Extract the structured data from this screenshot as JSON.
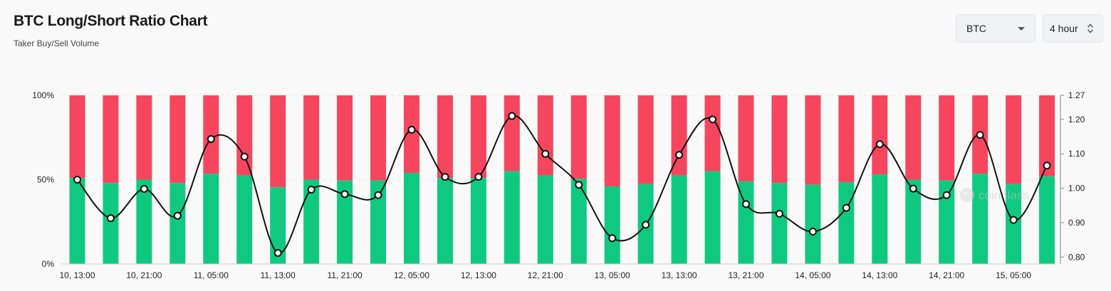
{
  "header": {
    "title": "BTC Long/Short Ratio Chart",
    "subtitle": "Taker Buy/Sell Volume"
  },
  "controls": {
    "coin_value": "BTC",
    "interval_value": "4 hour"
  },
  "watermark": {
    "text": "coinglass"
  },
  "colors": {
    "long": "#10c980",
    "short": "#f6465d",
    "ratio_line": "#111111",
    "grid": "#e8e8e8"
  },
  "chart_data": {
    "type": "bar",
    "stacked": true,
    "categories": [
      "10, 13:00",
      "10, 17:00",
      "10, 21:00",
      "11, 01:00",
      "11, 05:00",
      "11, 09:00",
      "11, 13:00",
      "11, 17:00",
      "11, 21:00",
      "12, 01:00",
      "12, 05:00",
      "12, 09:00",
      "12, 13:00",
      "12, 17:00",
      "12, 21:00",
      "13, 01:00",
      "13, 05:00",
      "13, 09:00",
      "13, 13:00",
      "13, 17:00",
      "13, 21:00",
      "14, 01:00",
      "14, 05:00",
      "14, 09:00",
      "14, 13:00",
      "14, 17:00",
      "14, 21:00",
      "15, 01:00",
      "15, 05:00",
      "15, 09:00"
    ],
    "x_tick_labels": [
      "10, 13:00",
      "10, 21:00",
      "11, 05:00",
      "11, 13:00",
      "11, 21:00",
      "12, 05:00",
      "12, 13:00",
      "12, 21:00",
      "13, 05:00",
      "13, 13:00",
      "13, 21:00",
      "14, 05:00",
      "14, 13:00",
      "14, 21:00",
      "15, 05:00"
    ],
    "series": [
      {
        "axis": "left",
        "values": [
          51,
          48,
          50,
          48,
          53.5,
          52.5,
          45.5,
          50,
          49.5,
          49.5,
          54,
          51,
          51,
          55,
          52.5,
          50.5,
          46,
          47.5,
          52.5,
          55,
          49,
          48,
          47,
          48.5,
          53,
          50,
          49.5,
          53.5,
          47.5,
          52
        ]
      },
      {
        "axis": "left",
        "values": [
          49,
          52,
          50,
          52,
          46.5,
          47.5,
          54.5,
          50,
          50.5,
          50.5,
          46,
          49,
          49,
          45,
          47.5,
          49.5,
          54,
          52.5,
          47.5,
          45,
          51,
          52,
          53,
          51.5,
          47,
          50,
          50.5,
          46.5,
          52.5,
          48
        ]
      },
      {
        "axis": "right",
        "type": "line",
        "values": [
          1.025,
          0.913,
          0.998,
          0.92,
          1.143,
          1.092,
          0.812,
          0.996,
          0.983,
          0.98,
          1.17,
          1.033,
          1.033,
          1.21,
          1.1,
          1.01,
          0.855,
          0.894,
          1.097,
          1.2,
          0.954,
          0.926,
          0.874,
          0.943,
          1.128,
          0.999,
          0.98,
          1.155,
          0.908,
          1.066
        ]
      }
    ],
    "left_axis": {
      "ticks": [
        "0%",
        "50%",
        "100%"
      ],
      "ylim": [
        0,
        100
      ]
    },
    "right_axis": {
      "ticks": [
        "0.80",
        "0.90",
        "1.00",
        "1.10",
        "1.20",
        "1.27"
      ],
      "ylim": [
        0.78,
        1.27
      ]
    },
    "grid": true,
    "legend": "none"
  }
}
